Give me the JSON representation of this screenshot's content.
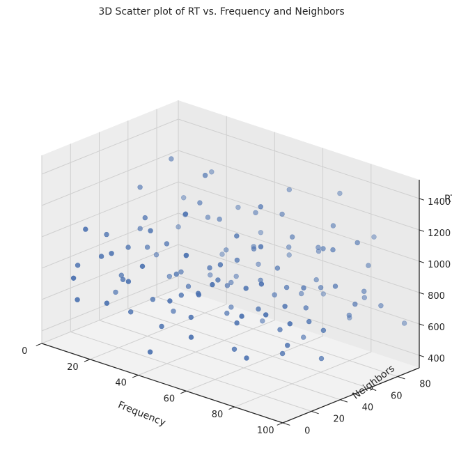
{
  "chart_data": {
    "type": "scatter",
    "projection": "3d",
    "title": "3D Scatter plot of RT vs. Frequency and Neighbors",
    "xlabel": "Frequency",
    "ylabel": "Neighbors",
    "zlabel": "RT",
    "xlim": [
      0,
      100
    ],
    "ylim": [
      0,
      95
    ],
    "zlim": [
      320,
      1520
    ],
    "xticks": [
      "0",
      "20",
      "40",
      "60",
      "80",
      "100"
    ],
    "yticks": [
      "0",
      "20",
      "40",
      "60",
      "80"
    ],
    "zticks": [
      "400",
      "600",
      "800",
      "1000",
      "1200",
      "1400"
    ],
    "grid": true,
    "marker_color": "#4c72b0",
    "pane_color": "#f2f2f2",
    "points": [
      {
        "x": 3,
        "y": 20,
        "z": 760
      },
      {
        "x": 10,
        "y": 8,
        "z": 620
      },
      {
        "x": 5,
        "y": 60,
        "z": 1120
      },
      {
        "x": 8,
        "y": 42,
        "z": 640
      },
      {
        "x": 15,
        "y": 35,
        "z": 880
      },
      {
        "x": 20,
        "y": 15,
        "z": 940
      },
      {
        "x": 12,
        "y": 70,
        "z": 1300
      },
      {
        "x": 25,
        "y": 55,
        "z": 700
      },
      {
        "x": 18,
        "y": 88,
        "z": 1180
      },
      {
        "x": 22,
        "y": 25,
        "z": 540
      },
      {
        "x": 28,
        "y": 40,
        "z": 950
      },
      {
        "x": 30,
        "y": 10,
        "z": 830
      },
      {
        "x": 35,
        "y": 65,
        "z": 1050
      },
      {
        "x": 33,
        "y": 80,
        "z": 620
      },
      {
        "x": 38,
        "y": 50,
        "z": 1400
      },
      {
        "x": 40,
        "y": 30,
        "z": 720
      },
      {
        "x": 42,
        "y": 5,
        "z": 460
      },
      {
        "x": 45,
        "y": 72,
        "z": 900
      },
      {
        "x": 48,
        "y": 20,
        "z": 1050
      },
      {
        "x": 50,
        "y": 45,
        "z": 600
      },
      {
        "x": 52,
        "y": 85,
        "z": 1250
      },
      {
        "x": 55,
        "y": 60,
        "z": 780
      },
      {
        "x": 58,
        "y": 12,
        "z": 880
      },
      {
        "x": 60,
        "y": 35,
        "z": 1180
      },
      {
        "x": 63,
        "y": 75,
        "z": 680
      },
      {
        "x": 65,
        "y": 25,
        "z": 520
      },
      {
        "x": 68,
        "y": 50,
        "z": 960
      },
      {
        "x": 70,
        "y": 90,
        "z": 1300
      },
      {
        "x": 72,
        "y": 15,
        "z": 760
      },
      {
        "x": 75,
        "y": 40,
        "z": 640
      },
      {
        "x": 78,
        "y": 65,
        "z": 1080
      },
      {
        "x": 80,
        "y": 5,
        "z": 880
      },
      {
        "x": 82,
        "y": 30,
        "z": 560
      },
      {
        "x": 85,
        "y": 82,
        "z": 740
      },
      {
        "x": 88,
        "y": 55,
        "z": 1160
      },
      {
        "x": 90,
        "y": 20,
        "z": 690
      },
      {
        "x": 92,
        "y": 70,
        "z": 860
      },
      {
        "x": 95,
        "y": 45,
        "z": 1000
      },
      {
        "x": 98,
        "y": 88,
        "z": 620
      },
      {
        "x": 97,
        "y": 10,
        "z": 900
      },
      {
        "x": 14,
        "y": 50,
        "z": 820
      },
      {
        "x": 26,
        "y": 72,
        "z": 990
      },
      {
        "x": 32,
        "y": 22,
        "z": 1120
      },
      {
        "x": 44,
        "y": 58,
        "z": 560
      },
      {
        "x": 56,
        "y": 78,
        "z": 930
      },
      {
        "x": 66,
        "y": 8,
        "z": 1000
      },
      {
        "x": 74,
        "y": 58,
        "z": 520
      },
      {
        "x": 86,
        "y": 38,
        "z": 970
      },
      {
        "x": 6,
        "y": 85,
        "z": 780
      },
      {
        "x": 36,
        "y": 92,
        "z": 870
      },
      {
        "x": 62,
        "y": 92,
        "z": 610
      },
      {
        "x": 94,
        "y": 62,
        "z": 1210
      },
      {
        "x": 46,
        "y": 12,
        "z": 780
      },
      {
        "x": 24,
        "y": 5,
        "z": 680
      },
      {
        "x": 76,
        "y": 25,
        "z": 1230
      },
      {
        "x": 54,
        "y": 32,
        "z": 880
      },
      {
        "x": 34,
        "y": 45,
        "z": 690
      },
      {
        "x": 84,
        "y": 12,
        "z": 1080
      },
      {
        "x": 16,
        "y": 62,
        "z": 600
      },
      {
        "x": 64,
        "y": 45,
        "z": 1350
      },
      {
        "x": 9,
        "y": 30,
        "z": 950
      },
      {
        "x": 41,
        "y": 82,
        "z": 730
      },
      {
        "x": 71,
        "y": 72,
        "z": 820
      },
      {
        "x": 19,
        "y": 40,
        "z": 1070
      },
      {
        "x": 51,
        "y": 68,
        "z": 470
      },
      {
        "x": 81,
        "y": 48,
        "z": 780
      },
      {
        "x": 29,
        "y": 88,
        "z": 1010
      },
      {
        "x": 59,
        "y": 5,
        "z": 640
      },
      {
        "x": 89,
        "y": 78,
        "z": 980
      },
      {
        "x": 2,
        "y": 48,
        "z": 480
      },
      {
        "x": 37,
        "y": 8,
        "z": 970
      },
      {
        "x": 67,
        "y": 62,
        "z": 1110
      },
      {
        "x": 93,
        "y": 30,
        "z": 820
      },
      {
        "x": 11,
        "y": 12,
        "z": 1060
      },
      {
        "x": 47,
        "y": 38,
        "z": 900
      },
      {
        "x": 77,
        "y": 85,
        "z": 560
      },
      {
        "x": 23,
        "y": 62,
        "z": 770
      },
      {
        "x": 57,
        "y": 52,
        "z": 1020
      },
      {
        "x": 87,
        "y": 68,
        "z": 690
      },
      {
        "x": 39,
        "y": 18,
        "z": 560
      },
      {
        "x": 69,
        "y": 35,
        "z": 760
      },
      {
        "x": 99,
        "y": 52,
        "z": 880
      },
      {
        "x": 13,
        "y": 78,
        "z": 920
      },
      {
        "x": 43,
        "y": 28,
        "z": 1260
      },
      {
        "x": 73,
        "y": 48,
        "z": 870
      },
      {
        "x": 27,
        "y": 32,
        "z": 620
      },
      {
        "x": 61,
        "y": 22,
        "z": 1050
      },
      {
        "x": 83,
        "y": 92,
        "z": 1080
      },
      {
        "x": 7,
        "y": 68,
        "z": 670
      },
      {
        "x": 53,
        "y": 15,
        "z": 700
      },
      {
        "x": 31,
        "y": 58,
        "z": 1160
      },
      {
        "x": 79,
        "y": 10,
        "z": 590
      },
      {
        "x": 17,
        "y": 28,
        "z": 710
      },
      {
        "x": 49,
        "y": 90,
        "z": 800
      },
      {
        "x": 91,
        "y": 42,
        "z": 530
      },
      {
        "x": 4,
        "y": 92,
        "z": 930
      },
      {
        "x": 21,
        "y": 82,
        "z": 560
      },
      {
        "x": 58,
        "y": 70,
        "z": 1180
      },
      {
        "x": 96,
        "y": 75,
        "z": 770
      },
      {
        "x": 35,
        "y": 35,
        "z": 810
      },
      {
        "x": 66,
        "y": 82,
        "z": 940
      },
      {
        "x": 12,
        "y": 2,
        "z": 790
      },
      {
        "x": 44,
        "y": 75,
        "z": 1100
      },
      {
        "x": 80,
        "y": 60,
        "z": 860
      },
      {
        "x": 26,
        "y": 48,
        "z": 480
      },
      {
        "x": 62,
        "y": 58,
        "z": 730
      },
      {
        "x": 90,
        "y": 5,
        "z": 940
      },
      {
        "x": 38,
        "y": 68,
        "z": 650
      },
      {
        "x": 74,
        "y": 18,
        "z": 980
      },
      {
        "x": 8,
        "y": 55,
        "z": 890
      },
      {
        "x": 50,
        "y": 25,
        "z": 800
      },
      {
        "x": 86,
        "y": 25,
        "z": 900
      },
      {
        "x": 30,
        "y": 78,
        "z": 780
      },
      {
        "x": 56,
        "y": 42,
        "z": 980
      },
      {
        "x": 20,
        "y": 92,
        "z": 650
      },
      {
        "x": 70,
        "y": 75,
        "z": 1010
      },
      {
        "x": 46,
        "y": 52,
        "z": 730
      },
      {
        "x": 96,
        "y": 35,
        "z": 760
      },
      {
        "x": 14,
        "y": 18,
        "z": 880
      },
      {
        "x": 78,
        "y": 72,
        "z": 1200
      }
    ]
  }
}
